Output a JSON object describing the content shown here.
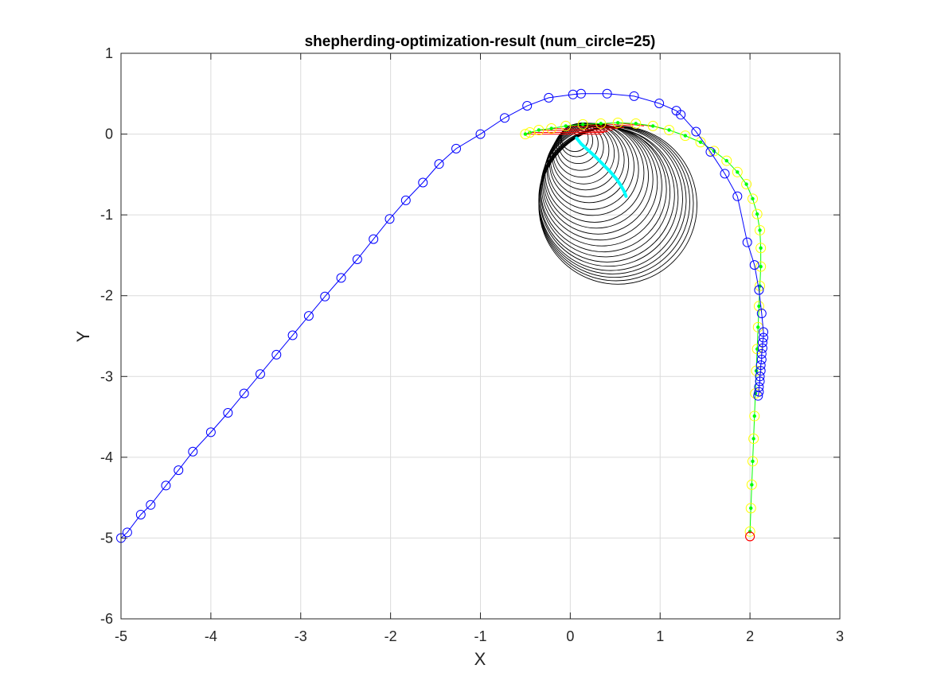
{
  "chart_data": {
    "type": "scatter",
    "title": "shepherding-optimization-result (num_circle=25)",
    "xlabel": "X",
    "ylabel": "Y",
    "xlim": [
      -5,
      3
    ],
    "ylim": [
      -6,
      1
    ],
    "xticks": [
      -5,
      -4,
      -3,
      -2,
      -1,
      0,
      1,
      2,
      3
    ],
    "yticks": [
      -6,
      -5,
      -4,
      -3,
      -2,
      -1,
      0,
      1
    ],
    "xtick_labels": [
      "-5",
      "-4",
      "-3",
      "-2",
      "-1",
      "0",
      "1",
      "2",
      "3"
    ],
    "ytick_labels": [
      "-6",
      "-5",
      "-4",
      "-3",
      "-2",
      "-1",
      "0",
      "1"
    ],
    "grid": true,
    "box": true,
    "colors": {
      "shepherd": "#0000ff",
      "sheep_ring": "#ffff00",
      "sheep_path": "#00ff00",
      "link": "#ff0000",
      "circle": "#000000",
      "center_path": "#00ffff",
      "goal": "#ff0000",
      "grid": "#dcdcdc",
      "axis": "#262626"
    },
    "series": [
      {
        "kind": "shepherd-trajectory",
        "style": "line+open-circle",
        "color": "#0000ff",
        "x": [
          -5.0,
          -4.93,
          -4.78,
          -4.67,
          -4.5,
          -4.36,
          -4.2,
          -4.0,
          -3.81,
          -3.63,
          -3.45,
          -3.27,
          -3.09,
          -2.91,
          -2.73,
          -2.55,
          -2.37,
          -2.19,
          -2.01,
          -1.83,
          -1.64,
          -1.46,
          -1.27,
          -1.0,
          -0.73,
          -0.48,
          -0.24,
          0.03,
          0.12,
          0.41,
          0.71,
          0.99,
          1.18,
          1.23,
          1.4,
          1.56,
          1.72,
          1.86,
          1.97,
          2.05,
          2.1,
          2.13,
          2.15,
          2.15,
          2.14,
          2.14,
          2.13,
          2.13,
          2.12,
          2.12,
          2.11,
          2.11,
          2.1,
          2.1,
          2.09
        ],
        "y": [
          -5.0,
          -4.93,
          -4.71,
          -4.59,
          -4.35,
          -4.16,
          -3.93,
          -3.69,
          -3.45,
          -3.21,
          -2.97,
          -2.73,
          -2.49,
          -2.25,
          -2.01,
          -1.78,
          -1.55,
          -1.3,
          -1.05,
          -0.82,
          -0.6,
          -0.37,
          -0.18,
          0.0,
          0.2,
          0.35,
          0.45,
          0.49,
          0.5,
          0.5,
          0.47,
          0.38,
          0.29,
          0.24,
          0.03,
          -0.22,
          -0.49,
          -0.77,
          -1.34,
          -1.62,
          -1.93,
          -2.22,
          -2.45,
          -2.52,
          -2.58,
          -2.65,
          -2.72,
          -2.79,
          -2.86,
          -2.93,
          -3.0,
          -3.06,
          -3.13,
          -3.19,
          -3.24
        ]
      },
      {
        "kind": "sheep-trajectory",
        "style": "line+dot+yellow-ring",
        "color": "#00ff00",
        "ring_color": "#ffff00",
        "x": [
          2.0,
          2.01,
          2.02,
          2.03,
          2.04,
          2.05,
          2.06,
          2.07,
          2.08,
          2.09,
          2.1,
          2.11,
          2.12,
          2.12,
          2.11,
          2.08,
          2.03,
          1.96,
          1.86,
          1.74,
          1.6,
          1.45,
          1.28,
          1.1,
          0.92,
          0.73,
          0.53,
          0.34,
          0.14,
          -0.05,
          -0.21,
          -0.35,
          -0.45,
          -0.5
        ],
        "y": [
          -4.92,
          -4.63,
          -4.34,
          -4.05,
          -3.77,
          -3.49,
          -3.21,
          -2.93,
          -2.66,
          -2.39,
          -2.13,
          -1.88,
          -1.64,
          -1.41,
          -1.19,
          -0.99,
          -0.8,
          -0.62,
          -0.47,
          -0.33,
          -0.21,
          -0.1,
          -0.02,
          0.05,
          0.1,
          0.13,
          0.14,
          0.13,
          0.12,
          0.1,
          0.07,
          0.05,
          0.02,
          0.0
        ]
      },
      {
        "kind": "link-lines",
        "style": "segments",
        "color": "#ff0000",
        "from_x": [
          -0.5,
          -0.45,
          -0.35,
          -0.21,
          -0.05,
          0.14,
          0.34,
          0.53,
          0.73,
          0.92
        ],
        "from_y": [
          0.0,
          0.02,
          0.05,
          0.07,
          0.1,
          0.12,
          0.13,
          0.14,
          0.13,
          0.1
        ],
        "to_x": [
          0.35,
          0.38,
          0.42,
          0.47,
          0.53,
          0.6,
          0.7,
          0.82,
          0.93,
          1.05
        ],
        "to_y": [
          0.0,
          0.02,
          0.03,
          0.05,
          0.07,
          0.08,
          0.1,
          0.1,
          0.09,
          0.06
        ]
      },
      {
        "kind": "circles",
        "style": "open-circle",
        "color": "#000000",
        "cx": [
          0.05,
          0.07,
          0.09,
          0.11,
          0.13,
          0.15,
          0.17,
          0.19,
          0.21,
          0.23,
          0.25,
          0.27,
          0.29,
          0.31,
          0.33,
          0.35,
          0.37,
          0.39,
          0.41,
          0.43,
          0.45,
          0.47,
          0.49,
          0.51,
          0.53
        ],
        "cy": [
          -0.05,
          -0.08,
          -0.12,
          -0.16,
          -0.2,
          -0.24,
          -0.28,
          -0.32,
          -0.36,
          -0.4,
          -0.44,
          -0.48,
          -0.52,
          -0.56,
          -0.6,
          -0.64,
          -0.68,
          -0.72,
          -0.75,
          -0.78,
          -0.8,
          -0.82,
          -0.84,
          -0.86,
          -0.88
        ],
        "r": [
          0.15,
          0.18,
          0.22,
          0.26,
          0.3,
          0.34,
          0.37,
          0.41,
          0.44,
          0.48,
          0.51,
          0.55,
          0.58,
          0.61,
          0.64,
          0.67,
          0.7,
          0.72,
          0.75,
          0.77,
          0.8,
          0.82,
          0.84,
          0.86,
          0.88
        ]
      },
      {
        "kind": "center-path",
        "style": "thick-line",
        "color": "#00ffff",
        "x": [
          0.07,
          0.12,
          0.2,
          0.28,
          0.36,
          0.44,
          0.51,
          0.56,
          0.6,
          0.62
        ],
        "y": [
          -0.05,
          -0.12,
          -0.2,
          -0.28,
          -0.37,
          -0.46,
          -0.55,
          -0.63,
          -0.71,
          -0.77
        ]
      },
      {
        "kind": "goal",
        "style": "open-circle",
        "color": "#ff0000",
        "x": [
          2.0
        ],
        "y": [
          -4.98
        ]
      }
    ]
  }
}
